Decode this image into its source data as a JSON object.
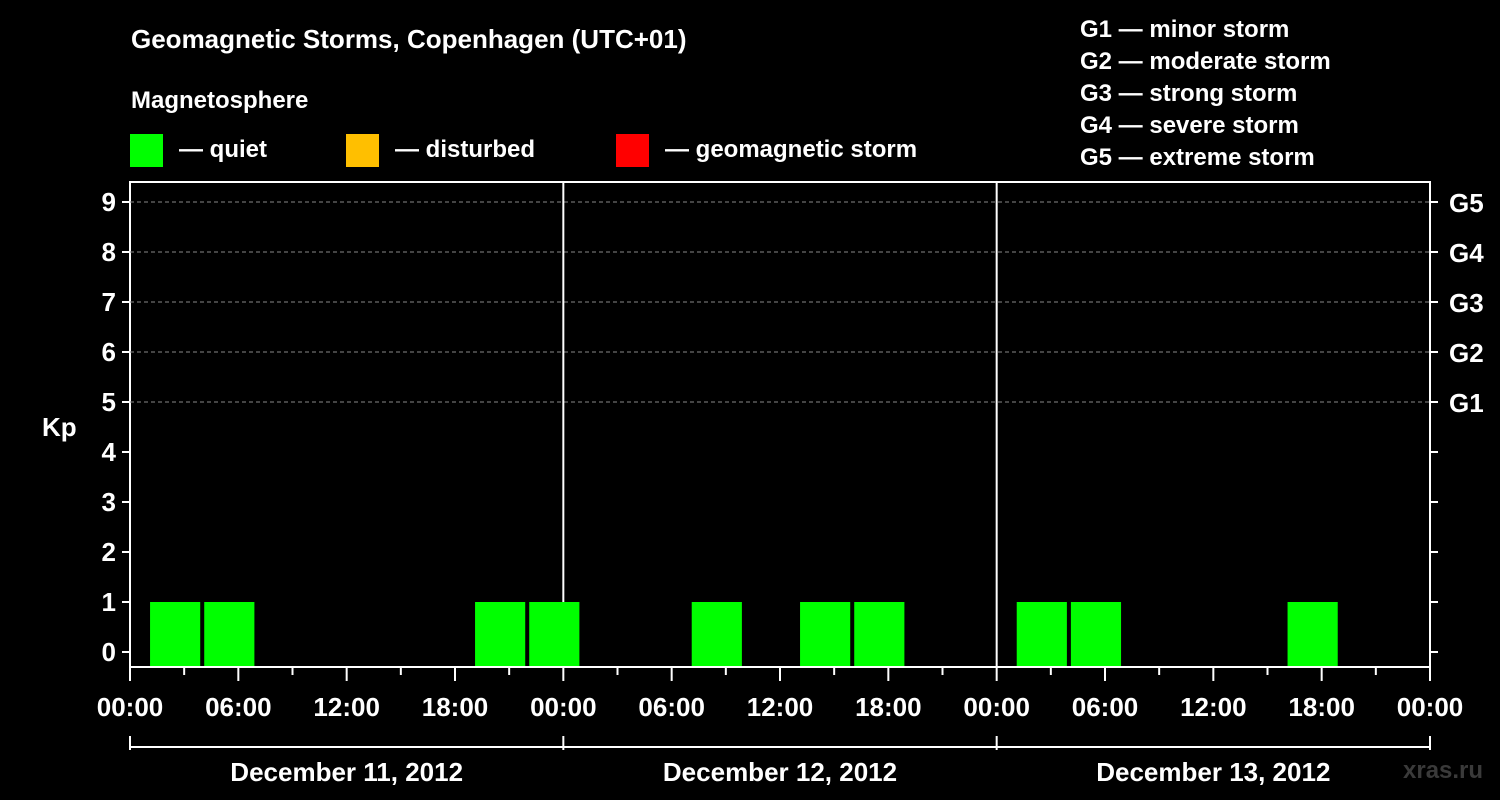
{
  "title": "Geomagnetic Storms, Copenhagen (UTC+01)",
  "subtitle": "Magnetosphere",
  "legend": [
    {
      "label": "— quiet",
      "color": "#00ff00"
    },
    {
      "label": "— disturbed",
      "color": "#ffbf00"
    },
    {
      "label": "— geomagnetic storm",
      "color": "#ff0000"
    }
  ],
  "storm_scale": [
    "G1 — minor storm",
    "G2 — moderate storm",
    "G3 — strong storm",
    "G4 — severe storm",
    "G5 — extreme storm"
  ],
  "watermark": "xras.ru",
  "chart_data": {
    "type": "bar",
    "title": "Geomagnetic Storms, Copenhagen (UTC+01)",
    "ylabel": "Kp",
    "ylim": [
      0,
      9
    ],
    "yticks": [
      "0",
      "1",
      "2",
      "3",
      "4",
      "5",
      "6",
      "7",
      "8",
      "9"
    ],
    "right_axis_labels": [
      {
        "kp": 5,
        "label": "G1"
      },
      {
        "kp": 6,
        "label": "G2"
      },
      {
        "kp": 7,
        "label": "G3"
      },
      {
        "kp": 8,
        "label": "G4"
      },
      {
        "kp": 9,
        "label": "G5"
      }
    ],
    "xlim_hours": [
      0,
      72
    ],
    "xtick_labels": [
      "00:00",
      "06:00",
      "12:00",
      "18:00",
      "00:00",
      "06:00",
      "12:00",
      "18:00",
      "00:00",
      "06:00",
      "12:00",
      "18:00",
      "00:00"
    ],
    "dates": [
      "December 11, 2012",
      "December 12, 2012",
      "December 13, 2012"
    ],
    "bar_width_hours": 3,
    "bars": [
      {
        "start_hour": 1,
        "kp": 1,
        "level": "quiet"
      },
      {
        "start_hour": 4,
        "kp": 1,
        "level": "quiet"
      },
      {
        "start_hour": 19,
        "kp": 1,
        "level": "quiet"
      },
      {
        "start_hour": 22,
        "kp": 1,
        "level": "quiet"
      },
      {
        "start_hour": 31,
        "kp": 1,
        "level": "quiet"
      },
      {
        "start_hour": 37,
        "kp": 1,
        "level": "quiet"
      },
      {
        "start_hour": 40,
        "kp": 1,
        "level": "quiet"
      },
      {
        "start_hour": 49,
        "kp": 1,
        "level": "quiet"
      },
      {
        "start_hour": 52,
        "kp": 1,
        "level": "quiet"
      },
      {
        "start_hour": 64,
        "kp": 1,
        "level": "quiet"
      }
    ],
    "level_colors": {
      "quiet": "#00ff00",
      "disturbed": "#ffbf00",
      "storm": "#ff0000"
    }
  }
}
